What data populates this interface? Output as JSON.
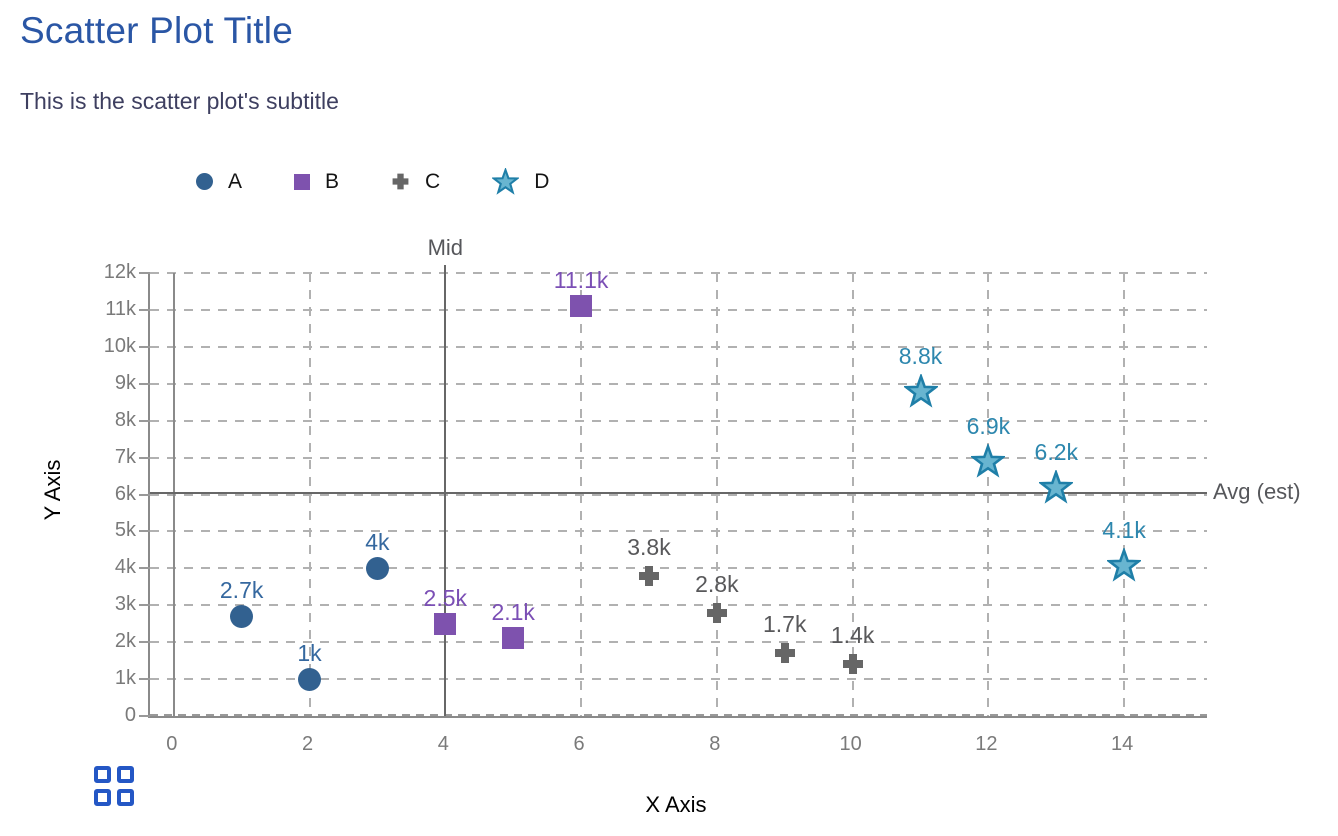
{
  "title": "Scatter Plot Title",
  "subtitle": "This is the scatter plot's subtitle",
  "colors": {
    "title": "#2a56a5",
    "subtitle": "#3e3f60",
    "tick_label": "#7a7a7a",
    "gridline": "#b1b1b1",
    "axis_line": "#8a8a8a",
    "ref_line": "#676767",
    "grid_icon": "#2457c5"
  },
  "icons": {
    "bottom_left": "grid-icon"
  },
  "chart_data": {
    "type": "scatter",
    "title": "Scatter Plot Title",
    "subtitle": "This is the scatter plot's subtitle",
    "xlabel": "X Axis",
    "ylabel": "Y Axis",
    "xlim": [
      -0.35,
      15.22
    ],
    "ylim": [
      0,
      12000
    ],
    "grid": true,
    "legend_position": "top",
    "x_ticks": [
      {
        "v": 0,
        "label": "0"
      },
      {
        "v": 2,
        "label": "2"
      },
      {
        "v": 4,
        "label": "4"
      },
      {
        "v": 6,
        "label": "6"
      },
      {
        "v": 8,
        "label": "8"
      },
      {
        "v": 10,
        "label": "10"
      },
      {
        "v": 12,
        "label": "12"
      },
      {
        "v": 14,
        "label": "14"
      }
    ],
    "y_ticks": [
      {
        "v": 0,
        "label": "0"
      },
      {
        "v": 1000,
        "label": "1k"
      },
      {
        "v": 2000,
        "label": "2k"
      },
      {
        "v": 3000,
        "label": "3k"
      },
      {
        "v": 4000,
        "label": "4k"
      },
      {
        "v": 5000,
        "label": "5k"
      },
      {
        "v": 6000,
        "label": "6k"
      },
      {
        "v": 7000,
        "label": "7k"
      },
      {
        "v": 8000,
        "label": "8k"
      },
      {
        "v": 9000,
        "label": "9k"
      },
      {
        "v": 10000,
        "label": "10k"
      },
      {
        "v": 11000,
        "label": "11k"
      },
      {
        "v": 12000,
        "label": "12k"
      }
    ],
    "x_gridlines": [
      2,
      4,
      6,
      8,
      10,
      12,
      14
    ],
    "series": [
      {
        "name": "A",
        "marker": "circle",
        "color": "#326190",
        "label_color": "#35689f",
        "points": [
          {
            "x": 1,
            "y": 2700,
            "label": "2.7k"
          },
          {
            "x": 2,
            "y": 1000,
            "label": "1k"
          },
          {
            "x": 3,
            "y": 4000,
            "label": "4k"
          }
        ]
      },
      {
        "name": "B",
        "marker": "square",
        "color": "#7e52ae",
        "label_color": "#7b4fb5",
        "points": [
          {
            "x": 4,
            "y": 2500,
            "label": "2.5k"
          },
          {
            "x": 5,
            "y": 2100,
            "label": "2.1k"
          },
          {
            "x": 6,
            "y": 11100,
            "label": "11.1k"
          }
        ]
      },
      {
        "name": "C",
        "marker": "plus",
        "color": "#666666",
        "label_color": "#58585a",
        "points": [
          {
            "x": 7,
            "y": 3800,
            "label": "3.8k"
          },
          {
            "x": 8,
            "y": 2800,
            "label": "2.8k"
          },
          {
            "x": 9,
            "y": 1700,
            "label": "1.7k"
          },
          {
            "x": 10,
            "y": 1400,
            "label": "1.4k"
          }
        ]
      },
      {
        "name": "D",
        "marker": "star",
        "color": "#68b5d0",
        "stroke": "#1f7fa8",
        "label_color": "#2d87ae",
        "points": [
          {
            "x": 11,
            "y": 8800,
            "label": "8.8k"
          },
          {
            "x": 12,
            "y": 6900,
            "label": "6.9k"
          },
          {
            "x": 13,
            "y": 6200,
            "label": "6.2k"
          },
          {
            "x": 14,
            "y": 4100,
            "label": "4.1k"
          }
        ]
      }
    ],
    "ref_lines": [
      {
        "orientation": "vertical",
        "x": 4,
        "label": "Mid"
      },
      {
        "orientation": "horizontal",
        "y": 6050,
        "label": "Avg (est)"
      }
    ]
  }
}
